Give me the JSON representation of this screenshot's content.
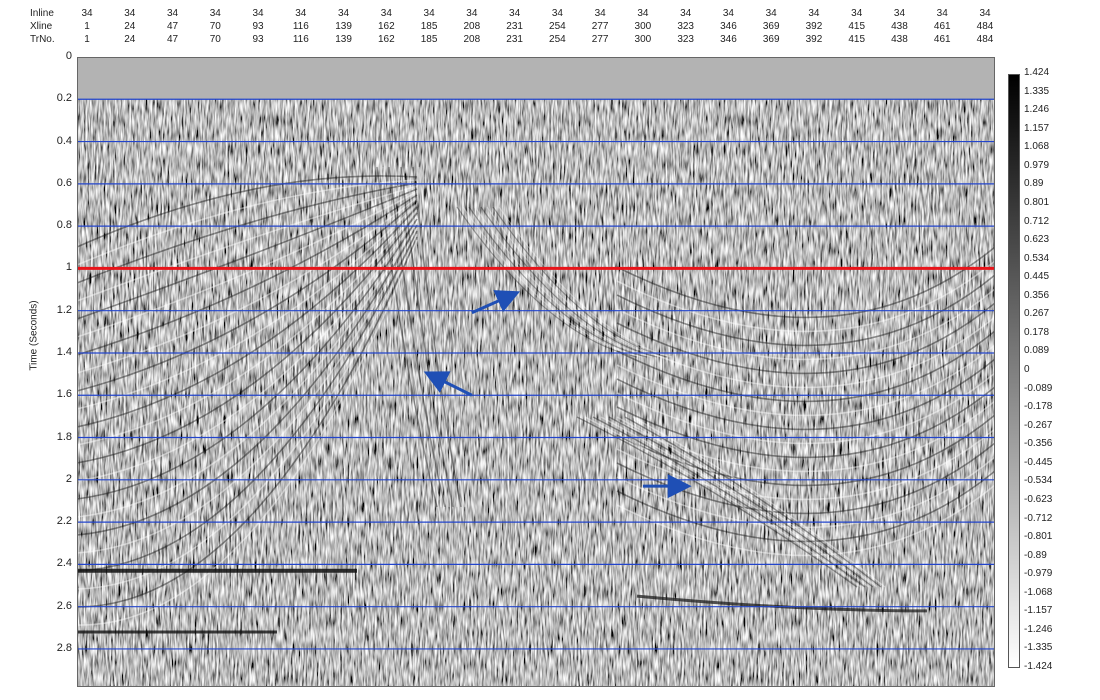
{
  "header": {
    "row_labels": [
      "Inline",
      "Xline",
      "TrNo."
    ],
    "inline": [
      "34",
      "34",
      "34",
      "34",
      "34",
      "34",
      "34",
      "34",
      "34",
      "34",
      "34",
      "34",
      "34",
      "34",
      "34",
      "34",
      "34",
      "34",
      "34",
      "34",
      "34",
      "34"
    ],
    "xline": [
      "1",
      "24",
      "47",
      "70",
      "93",
      "116",
      "139",
      "162",
      "185",
      "208",
      "231",
      "254",
      "277",
      "300",
      "323",
      "346",
      "369",
      "392",
      "415",
      "438",
      "461",
      "484"
    ],
    "trno": [
      "1",
      "24",
      "47",
      "70",
      "93",
      "116",
      "139",
      "162",
      "185",
      "208",
      "231",
      "254",
      "277",
      "300",
      "323",
      "346",
      "369",
      "392",
      "415",
      "438",
      "461",
      "484"
    ]
  },
  "chart_data": {
    "type": "heatmap",
    "title": "",
    "xlabel": "",
    "ylabel": "Time (Seconds)",
    "x_ticks": [
      "1",
      "24",
      "47",
      "70",
      "93",
      "116",
      "139",
      "162",
      "185",
      "208",
      "231",
      "254",
      "277",
      "300",
      "323",
      "346",
      "369",
      "392",
      "415",
      "438",
      "461",
      "484"
    ],
    "y_ticks": [
      "0",
      "0.2",
      "0.4",
      "0.6",
      "0.8",
      "1",
      "1.2",
      "1.4",
      "1.6",
      "1.8",
      "2",
      "2.2",
      "2.4",
      "2.6",
      "2.8"
    ],
    "ylim": [
      0,
      2.98
    ],
    "y_inverted": true,
    "grid_time_lines": [
      0.2,
      0.4,
      0.6,
      0.8,
      1.2,
      1.4,
      1.6,
      1.8,
      2,
      2.2,
      2.4,
      2.6,
      2.8
    ],
    "grid_color": "#2244cc",
    "highlight_line": {
      "time": 1,
      "color": "#e8141a"
    },
    "colormap": "grayscale (black high, white low)",
    "colorbar_ticks": [
      "1.424",
      "1.335",
      "1.246",
      "1.157",
      "1.068",
      "0.979",
      "0.89",
      "0.801",
      "0.712",
      "0.623",
      "0.534",
      "0.445",
      "0.356",
      "0.267",
      "0.178",
      "0.089",
      "0",
      "-0.089",
      "-0.178",
      "-0.267",
      "-0.356",
      "-0.445",
      "-0.534",
      "-0.623",
      "-0.712",
      "-0.801",
      "-0.89",
      "-0.979",
      "-1.068",
      "-1.157",
      "-1.246",
      "-1.335",
      "-1.424"
    ],
    "colorbar_range": [
      -1.424,
      1.424
    ],
    "muted_zone": {
      "from_time": 0,
      "to_time": 0.2,
      "color": "#b3b3b3"
    },
    "annotations": [
      {
        "type": "arrow",
        "color": "#1f4fb5",
        "from": {
          "trace": 208,
          "time": 1.21
        },
        "to": {
          "trace": 231,
          "time": 1.12
        }
      },
      {
        "type": "arrow",
        "color": "#1f4fb5",
        "from": {
          "trace": 208,
          "time": 1.6
        },
        "to": {
          "trace": 185,
          "time": 1.5
        }
      },
      {
        "type": "arrow",
        "color": "#1f4fb5",
        "from": {
          "trace": 300,
          "time": 2.03
        },
        "to": {
          "trace": 323,
          "time": 2.03
        }
      }
    ]
  }
}
